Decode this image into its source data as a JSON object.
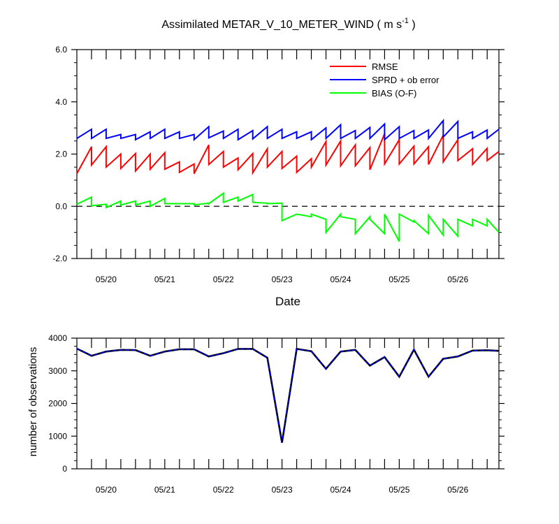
{
  "chart_data": [
    {
      "type": "line",
      "title": "Assimilated METAR_V_10_METER_WIND ( m s",
      "title_sup": "-1",
      "title_end": " )",
      "xlabel": "Date",
      "ylabel": "",
      "x_tick_labels": [
        "05/20",
        "05/21",
        "05/22",
        "05/23",
        "05/24",
        "05/25",
        "05/26"
      ],
      "x_ticks_day": [
        0.5,
        1.5,
        2.5,
        3.5,
        4.5,
        5.5,
        6.5
      ],
      "xlim": [
        0,
        7.2
      ],
      "ylim": [
        -2,
        6
      ],
      "y_tick_labels": [
        "-2.0",
        "0.0",
        "2.0",
        "4.0",
        "6.0"
      ],
      "y_ticks": [
        -2,
        0,
        2,
        4,
        6
      ],
      "zero_line": "dashed",
      "legend_position": "top-right",
      "colors": {
        "RMSE": "#ff0000",
        "SPRD": "#0000ff",
        "BIAS": "#00ff00"
      },
      "series": [
        {
          "name": "RMSE",
          "points": [
            [
              0,
              1.25
            ],
            [
              0.25,
              2.28
            ],
            [
              0.25,
              1.58
            ],
            [
              0.5,
              2.28
            ],
            [
              0.5,
              1.5
            ],
            [
              0.75,
              2.0
            ],
            [
              0.75,
              1.45
            ],
            [
              1.0,
              2.02
            ],
            [
              1.0,
              1.35
            ],
            [
              1.25,
              2.0
            ],
            [
              1.25,
              1.42
            ],
            [
              1.5,
              2.05
            ],
            [
              1.5,
              1.42
            ],
            [
              1.75,
              1.7
            ],
            [
              1.75,
              1.3
            ],
            [
              2.0,
              1.62
            ],
            [
              2.0,
              1.25
            ],
            [
              2.25,
              2.35
            ],
            [
              2.25,
              1.6
            ],
            [
              2.5,
              2.1
            ],
            [
              2.5,
              1.5
            ],
            [
              2.75,
              1.85
            ],
            [
              2.75,
              1.4
            ],
            [
              3.0,
              2.02
            ],
            [
              3.0,
              1.28
            ],
            [
              3.25,
              2.2
            ],
            [
              3.25,
              1.5
            ],
            [
              3.5,
              2.1
            ],
            [
              3.5,
              1.45
            ],
            [
              3.75,
              1.92
            ],
            [
              3.75,
              1.3
            ],
            [
              4.0,
              1.82
            ],
            [
              4.0,
              1.5
            ],
            [
              4.25,
              2.48
            ],
            [
              4.25,
              1.58
            ],
            [
              4.5,
              2.5
            ],
            [
              4.5,
              1.55
            ],
            [
              4.75,
              2.35
            ],
            [
              4.75,
              1.55
            ],
            [
              5.0,
              2.25
            ],
            [
              5.0,
              1.4
            ],
            [
              5.25,
              2.78
            ],
            [
              5.25,
              1.62
            ],
            [
              5.5,
              2.55
            ],
            [
              5.5,
              1.62
            ],
            [
              5.75,
              2.3
            ],
            [
              5.75,
              1.62
            ],
            [
              6.0,
              2.28
            ],
            [
              6.0,
              1.6
            ],
            [
              6.25,
              2.72
            ],
            [
              6.25,
              1.7
            ],
            [
              6.5,
              2.55
            ],
            [
              6.5,
              1.75
            ],
            [
              6.75,
              2.2
            ],
            [
              6.75,
              1.6
            ],
            [
              7.0,
              2.22
            ],
            [
              7.0,
              1.75
            ],
            [
              7.2,
              2.1
            ]
          ]
        },
        {
          "name": "SPRD + ob error",
          "points": [
            [
              0,
              2.6
            ],
            [
              0.25,
              2.95
            ],
            [
              0.25,
              2.6
            ],
            [
              0.5,
              2.95
            ],
            [
              0.5,
              2.6
            ],
            [
              0.75,
              2.75
            ],
            [
              0.75,
              2.6
            ],
            [
              1.0,
              2.75
            ],
            [
              1.0,
              2.55
            ],
            [
              1.25,
              2.85
            ],
            [
              1.25,
              2.6
            ],
            [
              1.5,
              2.95
            ],
            [
              1.5,
              2.6
            ],
            [
              1.75,
              2.85
            ],
            [
              1.75,
              2.6
            ],
            [
              2.0,
              2.75
            ],
            [
              2.0,
              2.55
            ],
            [
              2.25,
              3.05
            ],
            [
              2.25,
              2.62
            ],
            [
              2.5,
              2.88
            ],
            [
              2.5,
              2.6
            ],
            [
              2.75,
              2.95
            ],
            [
              2.75,
              2.55
            ],
            [
              3.0,
              2.9
            ],
            [
              3.0,
              2.58
            ],
            [
              3.25,
              3.05
            ],
            [
              3.25,
              2.6
            ],
            [
              3.5,
              2.95
            ],
            [
              3.5,
              2.6
            ],
            [
              3.75,
              2.85
            ],
            [
              3.75,
              2.6
            ],
            [
              4.0,
              2.85
            ],
            [
              4.0,
              2.55
            ],
            [
              4.25,
              3.0
            ],
            [
              4.25,
              2.6
            ],
            [
              4.5,
              3.12
            ],
            [
              4.5,
              2.6
            ],
            [
              4.75,
              2.9
            ],
            [
              4.75,
              2.6
            ],
            [
              5.0,
              3.02
            ],
            [
              5.0,
              2.6
            ],
            [
              5.25,
              3.15
            ],
            [
              5.25,
              2.55
            ],
            [
              5.5,
              3.05
            ],
            [
              5.5,
              2.6
            ],
            [
              5.75,
              2.9
            ],
            [
              5.75,
              2.6
            ],
            [
              6.0,
              2.92
            ],
            [
              6.0,
              2.6
            ],
            [
              6.25,
              3.28
            ],
            [
              6.25,
              2.65
            ],
            [
              6.5,
              3.25
            ],
            [
              6.5,
              2.6
            ],
            [
              6.75,
              2.85
            ],
            [
              6.75,
              2.6
            ],
            [
              7.0,
              2.92
            ],
            [
              7.0,
              2.6
            ],
            [
              7.2,
              2.95
            ]
          ]
        },
        {
          "name": "BIAS (O-F)",
          "points": [
            [
              0,
              0.08
            ],
            [
              0.25,
              0.35
            ],
            [
              0.25,
              0.02
            ],
            [
              0.5,
              0.08
            ],
            [
              0.5,
              -0.05
            ],
            [
              0.75,
              0.2
            ],
            [
              0.75,
              0.05
            ],
            [
              1.0,
              0.2
            ],
            [
              1.0,
              0.05
            ],
            [
              1.25,
              0.2
            ],
            [
              1.25,
              0.0
            ],
            [
              1.5,
              0.3
            ],
            [
              1.5,
              0.1
            ],
            [
              1.75,
              0.1
            ],
            [
              1.75,
              0.1
            ],
            [
              2.0,
              0.1
            ],
            [
              2.0,
              0.05
            ],
            [
              2.25,
              0.12
            ],
            [
              2.25,
              0.1
            ],
            [
              2.5,
              0.5
            ],
            [
              2.5,
              0.15
            ],
            [
              2.75,
              0.35
            ],
            [
              2.75,
              0.2
            ],
            [
              3.0,
              0.45
            ],
            [
              3.0,
              0.15
            ],
            [
              3.25,
              0.12
            ],
            [
              3.25,
              0.1
            ],
            [
              3.5,
              0.12
            ],
            [
              3.5,
              -0.55
            ],
            [
              3.75,
              -0.3
            ],
            [
              3.75,
              -0.3
            ],
            [
              4.0,
              -0.4
            ],
            [
              4.0,
              -0.3
            ],
            [
              4.25,
              -0.5
            ],
            [
              4.25,
              -1.0
            ],
            [
              4.5,
              -0.3
            ],
            [
              4.5,
              -0.4
            ],
            [
              4.75,
              -0.5
            ],
            [
              4.75,
              -1.05
            ],
            [
              5.0,
              -0.4
            ],
            [
              5.0,
              -0.5
            ],
            [
              5.25,
              -1.05
            ],
            [
              5.25,
              -0.3
            ],
            [
              5.5,
              -1.35
            ],
            [
              5.5,
              -0.3
            ],
            [
              5.75,
              -0.6
            ],
            [
              5.75,
              -0.55
            ],
            [
              6.0,
              -1.05
            ],
            [
              6.0,
              -0.35
            ],
            [
              6.25,
              -1.1
            ],
            [
              6.25,
              -0.5
            ],
            [
              6.5,
              -1.15
            ],
            [
              6.5,
              -0.5
            ],
            [
              6.75,
              -0.75
            ],
            [
              6.75,
              -0.5
            ],
            [
              7.0,
              -0.75
            ],
            [
              7.0,
              -0.5
            ],
            [
              7.2,
              -1.0
            ]
          ]
        }
      ]
    },
    {
      "type": "line",
      "title": "",
      "xlabel": "",
      "ylabel": "number of observations",
      "x_tick_labels": [
        "05/20",
        "05/21",
        "05/22",
        "05/23",
        "05/24",
        "05/25",
        "05/26"
      ],
      "x_ticks_day": [
        0.5,
        1.5,
        2.5,
        3.5,
        4.5,
        5.5,
        6.5
      ],
      "xlim": [
        0,
        7.2
      ],
      "ylim": [
        0,
        4000
      ],
      "y_tick_labels": [
        "0",
        "1000",
        "2000",
        "3000",
        "4000"
      ],
      "y_ticks": [
        0,
        1000,
        2000,
        3000,
        4000
      ],
      "colors": {
        "possible": "#000000",
        "used": "#0000ff"
      },
      "series": [
        {
          "points": [
            [
              0,
              3680
            ],
            [
              0.25,
              3460
            ],
            [
              0.5,
              3590
            ],
            [
              0.75,
              3640
            ],
            [
              1.0,
              3635
            ],
            [
              1.25,
              3460
            ],
            [
              1.5,
              3590
            ],
            [
              1.75,
              3660
            ],
            [
              2.0,
              3660
            ],
            [
              2.25,
              3440
            ],
            [
              2.5,
              3540
            ],
            [
              2.75,
              3670
            ],
            [
              3.0,
              3670
            ],
            [
              3.25,
              3400
            ],
            [
              3.5,
              800
            ],
            [
              3.75,
              3670
            ],
            [
              4.0,
              3600
            ],
            [
              4.25,
              3060
            ],
            [
              4.5,
              3590
            ],
            [
              4.75,
              3640
            ],
            [
              5.0,
              3160
            ],
            [
              5.25,
              3420
            ],
            [
              5.5,
              2820
            ],
            [
              5.75,
              3650
            ],
            [
              6.0,
              2820
            ],
            [
              6.25,
              3370
            ],
            [
              6.5,
              3440
            ],
            [
              6.75,
              3620
            ],
            [
              7.0,
              3630
            ],
            [
              7.2,
              3610
            ]
          ]
        }
      ]
    }
  ]
}
